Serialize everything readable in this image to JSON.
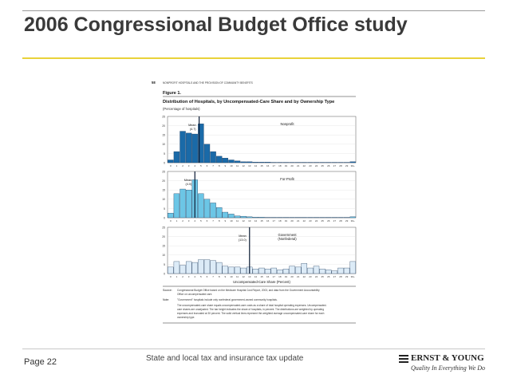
{
  "slide": {
    "title": "2006 Congressional Budget Office study",
    "page_label": "Page 22",
    "footer_text": "State and local tax and insurance tax update",
    "logo_name": "ERNST & YOUNG",
    "logo_tagline": "Quality In Everything We Do",
    "colors": {
      "gold_rule": "#e9d23a",
      "title": "#3a3a3a"
    }
  },
  "chart_data": {
    "type": "bar",
    "header": {
      "page_number": "58",
      "running_head": "NONPROFIT HOSPITALS AND THE PROVISION OF COMMUNITY BENEFITS"
    },
    "figure_label": "Figure 1.",
    "title": "Distribution of Hospitals, by Uncompensated-Care Share and by Ownership Type",
    "subtitle": "(Percentage of hospitals)",
    "xlabel": "Uncompensated-Care Share (Percent)",
    "ylim": [
      0,
      25
    ],
    "yticks": [
      0,
      5,
      10,
      15,
      20,
      25
    ],
    "categories": [
      "0",
      "1",
      "2",
      "3",
      "4",
      "5",
      "6",
      "7",
      "8",
      "9",
      "10",
      "11",
      "12",
      "13",
      "14",
      "15",
      "16",
      "17",
      "18",
      "19",
      "20",
      "21",
      "22",
      "23",
      "24",
      "25",
      "26",
      "27",
      "28",
      "29",
      "30+"
    ],
    "panels": [
      {
        "name": "Nonprofit",
        "color": "#1a6aa8",
        "mean_label": "Mean",
        "mean_value_label": "(4.7)",
        "mean": 4.7,
        "values": [
          1.5,
          6,
          17,
          16,
          15.5,
          21,
          10,
          6,
          3.5,
          2.5,
          1.5,
          1,
          0.5,
          0.5,
          0.3,
          0.3,
          0.3,
          0.2,
          0.2,
          0.2,
          0.2,
          0.2,
          0.2,
          0.2,
          0.2,
          0.2,
          0.2,
          0.2,
          0.2,
          0.2,
          0.5
        ]
      },
      {
        "name": "For-Profit",
        "color": "#6cc6e6",
        "mean_label": "Mean",
        "mean_value_label": "(4.0)",
        "mean": 4.0,
        "values": [
          2.5,
          13,
          15.5,
          15,
          20.5,
          13,
          10,
          8,
          5.5,
          3,
          2,
          1,
          0.8,
          0.5,
          0.3,
          0.3,
          0.2,
          0.2,
          0.2,
          0.2,
          0.2,
          0.2,
          0.2,
          0.2,
          0.2,
          0.2,
          0.2,
          0.2,
          0.2,
          0.2,
          0.5
        ]
      },
      {
        "name": "Government",
        "name_line2": "(Nonfederal)",
        "color": "#dcebf7",
        "mean_label": "Mean",
        "mean_value_label": "(13.0)",
        "mean": 13.0,
        "values": [
          3.5,
          6.5,
          4.5,
          6.5,
          6,
          7.5,
          7.5,
          7,
          6,
          4,
          3.5,
          3.5,
          3,
          3.5,
          2.5,
          3,
          2.5,
          3,
          2,
          2.5,
          4,
          3.5,
          5.5,
          3,
          4,
          2.5,
          2,
          1.5,
          3,
          3,
          6.5
        ]
      }
    ],
    "notes": {
      "source_label": "Source:",
      "source_line1": "Congressional Budget Office based on the Medicare Hospital Cost Report, 2003, and data from the Government Accountability",
      "source_line2": "Office on uncompensated care.",
      "note_label": "Note:",
      "note_line1": "\"Government\" hospitals include only nonfederal government-owned community hospitals.",
      "note_line2": "The uncompensated-care share equals uncompensated-care costs as a share of total hospital operating expenses. Uncompensated-",
      "note_line3": "care shares are unadjusted. The bar height indicates the share of hospitals, in percent. The distributions are weighted by operating",
      "note_line4": "expenses and truncated at 30 percent. The solid vertical lines represent the weighted average uncompensated-care share for each",
      "note_line5": "ownership type."
    }
  }
}
